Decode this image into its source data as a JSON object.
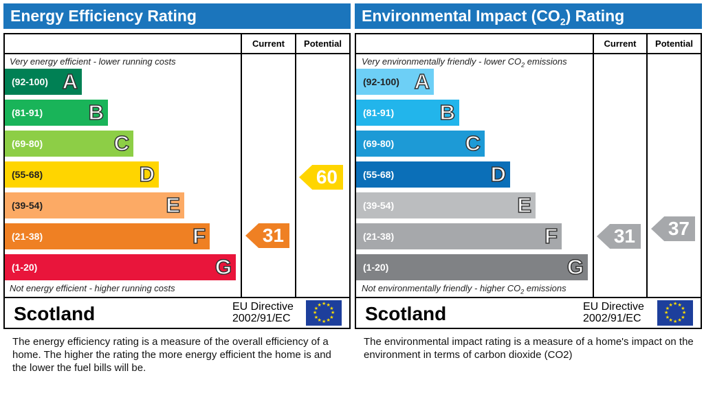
{
  "energy": {
    "title": "Energy Efficiency Rating",
    "col_current": "Current",
    "col_potential": "Potential",
    "top_note": "Very energy efficient - lower running costs",
    "bottom_note": "Not energy efficient - higher running costs",
    "bands": [
      {
        "range": "(92-100)",
        "letter": "A",
        "color": "#008054"
      },
      {
        "range": "(81-91)",
        "letter": "B",
        "color": "#19b459"
      },
      {
        "range": "(69-80)",
        "letter": "C",
        "color": "#8dce46"
      },
      {
        "range": "(55-68)",
        "letter": "D",
        "color": "#ffd500"
      },
      {
        "range": "(39-54)",
        "letter": "E",
        "color": "#fcaa65"
      },
      {
        "range": "(21-38)",
        "letter": "F",
        "color": "#ef8023"
      },
      {
        "range": "(1-20)",
        "letter": "G",
        "color": "#e9153b"
      }
    ],
    "current": "31",
    "current_color": "#ef8023",
    "potential": "60",
    "potential_color": "#ffd500",
    "country": "Scotland",
    "directive_line1": "EU Directive",
    "directive_line2": "2002/91/EC",
    "description": "The energy efficiency rating is a measure of the overall efficiency of a home.  The higher the rating the more energy efficient the home is and the lower the fuel bills will be."
  },
  "environment": {
    "title": "Environmental Impact (CO",
    "title_sub": "2",
    "title_end": ") Rating",
    "col_current": "Current",
    "col_potential": "Potential",
    "top_note": "Very environmentally friendly - lower CO",
    "top_note_sub": "2",
    "top_note_end": " emissions",
    "bottom_note": "Not environmentally friendly - higher CO",
    "bottom_note_sub": "2",
    "bottom_note_end": " emissions",
    "bands": [
      {
        "range": "(92-100)",
        "letter": "A",
        "color": "#6dcff6"
      },
      {
        "range": "(81-91)",
        "letter": "B",
        "color": "#22b5eb"
      },
      {
        "range": "(69-80)",
        "letter": "C",
        "color": "#1d9ad6"
      },
      {
        "range": "(55-68)",
        "letter": "D",
        "color": "#0b6fb8"
      },
      {
        "range": "(39-54)",
        "letter": "E",
        "color": "#bbbdbf"
      },
      {
        "range": "(21-38)",
        "letter": "F",
        "color": "#a6a8ab"
      },
      {
        "range": "(1-20)",
        "letter": "G",
        "color": "#808285"
      }
    ],
    "current": "31",
    "current_color": "#a6a8ab",
    "potential": "37",
    "potential_color": "#a6a8ab",
    "country": "Scotland",
    "directive_line1": "EU Directive",
    "directive_line2": "2002/91/EC",
    "description": "The environmental impact rating is a measure of a home's impact on the environment in terms of carbon dioxide (CO2)"
  }
}
